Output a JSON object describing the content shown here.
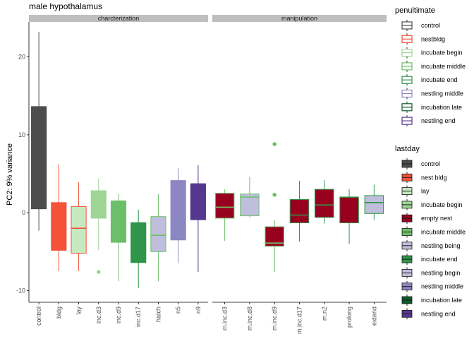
{
  "chart_data": {
    "type": "box",
    "title": "male hypothalamus",
    "ylabel": "PC2: 9% variance",
    "xlabel": "",
    "ylim": [
      -11.5,
      24.5
    ],
    "yticks": [
      -10,
      0,
      10,
      20
    ],
    "grid": false,
    "legend_position": "right",
    "panels": [
      {
        "strip": "charcterization",
        "categories": [
          "control",
          "bldg",
          "lay",
          "inc.d3",
          "inc.d9",
          "inc.d17",
          "hatch",
          "n5",
          "n9"
        ],
        "boxes": [
          {
            "category": "control",
            "fill": "#4d4d4d",
            "outline": "#4d4d4d",
            "min": -2.3,
            "q1": 0.5,
            "median": 13.6,
            "q3": 13.6,
            "max": 23.2,
            "outliers": []
          },
          {
            "category": "bldg",
            "fill": "#f4533a",
            "outline": "#f4533a",
            "min": -7.5,
            "q1": -4.8,
            "median": -4.8,
            "q3": 1.3,
            "max": 6.2,
            "outliers": []
          },
          {
            "category": "lay",
            "fill": "#c7e9c0",
            "outline": "#f4533a",
            "min": -7.5,
            "q1": -5.2,
            "median": -2.0,
            "q3": 0.8,
            "max": 3.9,
            "outliers": []
          },
          {
            "category": "inc.d3",
            "fill": "#9ed595",
            "outline": "#9ed595",
            "min": -4.8,
            "q1": -0.7,
            "median": 2.8,
            "q3": 2.8,
            "max": 4.4,
            "outliers": [
              -7.6
            ]
          },
          {
            "category": "inc.d9",
            "fill": "#6cbf68",
            "outline": "#6cbf68",
            "min": -8.8,
            "q1": -3.8,
            "median": 1.5,
            "q3": 1.5,
            "max": 2.4,
            "outliers": []
          },
          {
            "category": "inc.d17",
            "fill": "#2e9549",
            "outline": "#2e9549",
            "min": -9.7,
            "q1": -6.4,
            "median": -1.3,
            "q3": -1.3,
            "max": 0.4,
            "outliers": []
          },
          {
            "category": "hatch",
            "fill": "#bfbedd",
            "outline": "#6cbf68",
            "min": -8.8,
            "q1": -5.0,
            "median": -2.9,
            "q3": -0.5,
            "max": 2.4,
            "outliers": []
          },
          {
            "category": "n5",
            "fill": "#8c87c2",
            "outline": "#8c87c2",
            "min": -6.5,
            "q1": -3.5,
            "median": 4.1,
            "q3": 4.1,
            "max": 5.7,
            "outliers": []
          },
          {
            "category": "n9",
            "fill": "#56378f",
            "outline": "#56378f",
            "min": -7.6,
            "q1": -0.9,
            "median": 3.7,
            "q3": 3.7,
            "max": 6.1,
            "outliers": []
          }
        ]
      },
      {
        "strip": "manipulation",
        "categories": [
          "m.inc.d3",
          "m.inc.d8",
          "m.inc.d9",
          "m.inc.d17",
          "m.n2",
          "prolong",
          "extend"
        ],
        "boxes": [
          {
            "category": "m.inc.d3",
            "fill": "#98001f",
            "outline": "#6cbf68",
            "min": -3.6,
            "q1": -0.7,
            "median": 0.7,
            "q3": 2.5,
            "max": 3.0,
            "outliers": []
          },
          {
            "category": "m.inc.d8",
            "fill": "#bfbedd",
            "outline": "#6cbf68",
            "min": -0.6,
            "q1": -0.4,
            "median": 2.0,
            "q3": 2.4,
            "max": 4.6,
            "outliers": []
          },
          {
            "category": "m.inc.d9",
            "fill": "#98001f",
            "outline": "#6cbf68",
            "min": -7.6,
            "q1": -4.3,
            "median": -3.9,
            "q3": -1.8,
            "max": -1.0,
            "outliers": [
              8.8,
              2.3
            ]
          },
          {
            "category": "m.inc.d17",
            "fill": "#98001f",
            "outline": "#2e9549",
            "min": -3.7,
            "q1": -1.3,
            "median": -0.3,
            "q3": 1.7,
            "max": 4.1,
            "outliers": []
          },
          {
            "category": "m.n2",
            "fill": "#98001f",
            "outline": "#2e9549",
            "min": -1.4,
            "q1": -0.6,
            "median": 1.0,
            "q3": 3.0,
            "max": 4.2,
            "outliers": []
          },
          {
            "category": "prolong",
            "fill": "#98001f",
            "outline": "#2e9549",
            "min": -4.0,
            "q1": -1.3,
            "median": 2.0,
            "q3": 2.0,
            "max": 3.0,
            "outliers": []
          },
          {
            "category": "extend",
            "fill": "#bfbedd",
            "outline": "#2e9549",
            "min": -0.9,
            "q1": -0.1,
            "median": 1.3,
            "q3": 2.2,
            "max": 3.6,
            "outliers": []
          }
        ]
      }
    ],
    "legends": [
      {
        "title": "penultimate",
        "keys": "outline",
        "entries": [
          {
            "label": "control",
            "color": "#4d4d4d"
          },
          {
            "label": "nestbldg",
            "color": "#f4533a"
          },
          {
            "label": "incubate begin",
            "color": "#9ed595"
          },
          {
            "label": "incubate middle",
            "color": "#6cbf68"
          },
          {
            "label": "incubate end",
            "color": "#2e9549"
          },
          {
            "label": "nestling middle",
            "color": "#8c87c2"
          },
          {
            "label": "incubation late",
            "color": "#0d5a2a"
          },
          {
            "label": "nestling end",
            "color": "#56378f"
          }
        ]
      },
      {
        "title": "lastday",
        "keys": "fill",
        "entries": [
          {
            "label": "control",
            "color": "#4d4d4d"
          },
          {
            "label": "nest bldg",
            "color": "#f4533a"
          },
          {
            "label": "lay",
            "color": "#c7e9c0"
          },
          {
            "label": "incubate begin",
            "color": "#9ed595"
          },
          {
            "label": "empty nest",
            "color": "#98001f"
          },
          {
            "label": "incubate middle",
            "color": "#6cbf68"
          },
          {
            "label": "nestling being",
            "color": "#bfbedd"
          },
          {
            "label": "incubate end",
            "color": "#2e9549"
          },
          {
            "label": "nestling begin",
            "color": "#bfbedd"
          },
          {
            "label": "nestling middle",
            "color": "#8c87c2"
          },
          {
            "label": "incubation late",
            "color": "#0d5a2a"
          },
          {
            "label": "nestling end",
            "color": "#56378f"
          }
        ]
      }
    ]
  }
}
